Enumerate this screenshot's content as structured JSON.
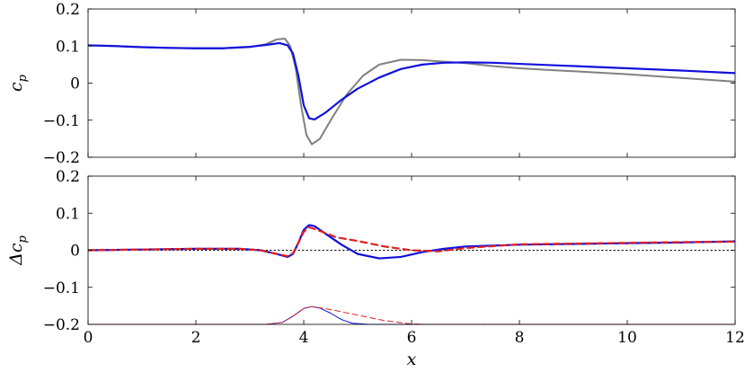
{
  "chart_data": [
    {
      "type": "line",
      "xlabel": "",
      "ylabel": "c_p",
      "ylabel_main": "c",
      "ylabel_sub": "p",
      "xlim": [
        0,
        12
      ],
      "ylim": [
        -0.2,
        0.2
      ],
      "x_ticks": [
        0,
        2,
        4,
        6,
        8,
        10,
        12
      ],
      "y_ticks": [
        -0.2,
        -0.1,
        0,
        0.1,
        0.2
      ],
      "y_tick_labels": [
        "−0.2",
        "−0.1",
        "0",
        "0.1",
        "0.2"
      ],
      "grid": false,
      "series": [
        {
          "color": "#808080",
          "width": 2,
          "dash": "",
          "points": [
            [
              0,
              0.102
            ],
            [
              0.5,
              0.1
            ],
            [
              1,
              0.097
            ],
            [
              1.5,
              0.095
            ],
            [
              2,
              0.094
            ],
            [
              2.5,
              0.094
            ],
            [
              3,
              0.097
            ],
            [
              3.3,
              0.105
            ],
            [
              3.5,
              0.118
            ],
            [
              3.65,
              0.12
            ],
            [
              3.75,
              0.1
            ],
            [
              3.85,
              0.04
            ],
            [
              3.95,
              -0.06
            ],
            [
              4.05,
              -0.14
            ],
            [
              4.15,
              -0.165
            ],
            [
              4.3,
              -0.15
            ],
            [
              4.5,
              -0.1
            ],
            [
              4.8,
              -0.03
            ],
            [
              5.1,
              0.02
            ],
            [
              5.4,
              0.05
            ],
            [
              5.8,
              0.063
            ],
            [
              6.2,
              0.062
            ],
            [
              6.6,
              0.058
            ],
            [
              7,
              0.054
            ],
            [
              7.5,
              0.046
            ],
            [
              8,
              0.04
            ],
            [
              9,
              0.032
            ],
            [
              10,
              0.024
            ],
            [
              11,
              0.014
            ],
            [
              12,
              0.004
            ]
          ]
        },
        {
          "color": "#1010dd",
          "width": 2.2,
          "dash": "",
          "points": [
            [
              0,
              0.102
            ],
            [
              0.5,
              0.1
            ],
            [
              1,
              0.097
            ],
            [
              1.5,
              0.095
            ],
            [
              2,
              0.094
            ],
            [
              2.5,
              0.094
            ],
            [
              3,
              0.098
            ],
            [
              3.3,
              0.103
            ],
            [
              3.55,
              0.108
            ],
            [
              3.7,
              0.102
            ],
            [
              3.8,
              0.08
            ],
            [
              3.9,
              0.02
            ],
            [
              4.0,
              -0.06
            ],
            [
              4.1,
              -0.095
            ],
            [
              4.2,
              -0.098
            ],
            [
              4.4,
              -0.08
            ],
            [
              4.7,
              -0.045
            ],
            [
              5,
              -0.015
            ],
            [
              5.4,
              0.015
            ],
            [
              5.8,
              0.038
            ],
            [
              6.2,
              0.05
            ],
            [
              6.6,
              0.055
            ],
            [
              7,
              0.056
            ],
            [
              7.5,
              0.055
            ],
            [
              8,
              0.052
            ],
            [
              9,
              0.046
            ],
            [
              10,
              0.04
            ],
            [
              11,
              0.034
            ],
            [
              12,
              0.027
            ]
          ]
        }
      ]
    },
    {
      "type": "line",
      "xlabel": "x",
      "ylabel": "Δc_p",
      "ylabel_main": "Δc",
      "ylabel_sub": "p",
      "xlim": [
        0,
        12
      ],
      "ylim": [
        -0.2,
        0.2
      ],
      "x_ticks": [
        0,
        2,
        4,
        6,
        8,
        10,
        12
      ],
      "x_tick_labels": [
        "0",
        "2",
        "4",
        "6",
        "8",
        "10",
        "12"
      ],
      "y_ticks": [
        -0.2,
        -0.1,
        0,
        0.1,
        0.2
      ],
      "y_tick_labels": [
        "−0.2",
        "−0.1",
        "0",
        "0.1",
        "0.2"
      ],
      "grid": false,
      "series": [
        {
          "color": "#000000",
          "width": 1,
          "dash": "1.5,3",
          "points": [
            [
              0,
              0
            ],
            [
              12,
              0
            ]
          ]
        },
        {
          "color": "#1010dd",
          "width": 2.2,
          "dash": "",
          "points": [
            [
              0,
              0
            ],
            [
              1,
              0.002
            ],
            [
              2,
              0.004
            ],
            [
              2.8,
              0.004
            ],
            [
              3.2,
              0.0
            ],
            [
              3.5,
              -0.01
            ],
            [
              3.7,
              -0.018
            ],
            [
              3.8,
              -0.01
            ],
            [
              3.9,
              0.02
            ],
            [
              4.0,
              0.055
            ],
            [
              4.1,
              0.068
            ],
            [
              4.2,
              0.065
            ],
            [
              4.4,
              0.045
            ],
            [
              4.7,
              0.015
            ],
            [
              5,
              -0.01
            ],
            [
              5.4,
              -0.022
            ],
            [
              5.8,
              -0.018
            ],
            [
              6.2,
              -0.005
            ],
            [
              6.6,
              0.004
            ],
            [
              7,
              0.01
            ],
            [
              8,
              0.015
            ],
            [
              9,
              0.017
            ],
            [
              10,
              0.019
            ],
            [
              11,
              0.021
            ],
            [
              12,
              0.024
            ]
          ]
        },
        {
          "color": "#e02020",
          "width": 2.2,
          "dash": "7,5",
          "points": [
            [
              0,
              0
            ],
            [
              1,
              0.002
            ],
            [
              2,
              0.004
            ],
            [
              2.8,
              0.004
            ],
            [
              3.2,
              0.0
            ],
            [
              3.5,
              -0.01
            ],
            [
              3.7,
              -0.016
            ],
            [
              3.8,
              -0.008
            ],
            [
              3.9,
              0.02
            ],
            [
              4.0,
              0.05
            ],
            [
              4.1,
              0.062
            ],
            [
              4.25,
              0.055
            ],
            [
              4.6,
              0.035
            ],
            [
              5,
              0.025
            ],
            [
              5.5,
              0.01
            ],
            [
              6,
              0.0
            ],
            [
              6.5,
              -0.003
            ],
            [
              7,
              0.006
            ],
            [
              8,
              0.016
            ],
            [
              9,
              0.018
            ],
            [
              10,
              0.02
            ],
            [
              11,
              0.022
            ],
            [
              12,
              0.023
            ]
          ]
        },
        {
          "color": "#1010dd",
          "width": 1,
          "dash": "",
          "points": [
            [
              0,
              -0.2
            ],
            [
              3.3,
              -0.2
            ],
            [
              3.6,
              -0.195
            ],
            [
              3.8,
              -0.178
            ],
            [
              4.0,
              -0.157
            ],
            [
              4.15,
              -0.152
            ],
            [
              4.3,
              -0.156
            ],
            [
              4.5,
              -0.17
            ],
            [
              4.7,
              -0.187
            ],
            [
              4.9,
              -0.197
            ],
            [
              5.2,
              -0.2
            ],
            [
              12,
              -0.2
            ]
          ]
        },
        {
          "color": "#e02020",
          "width": 1,
          "dash": "6,4",
          "points": [
            [
              0,
              -0.2
            ],
            [
              3.3,
              -0.2
            ],
            [
              3.6,
              -0.195
            ],
            [
              3.8,
              -0.178
            ],
            [
              4.0,
              -0.157
            ],
            [
              4.15,
              -0.152
            ],
            [
              4.5,
              -0.16
            ],
            [
              5,
              -0.175
            ],
            [
              5.5,
              -0.19
            ],
            [
              6,
              -0.199
            ],
            [
              6.3,
              -0.2
            ],
            [
              12,
              -0.2
            ]
          ]
        }
      ]
    }
  ]
}
